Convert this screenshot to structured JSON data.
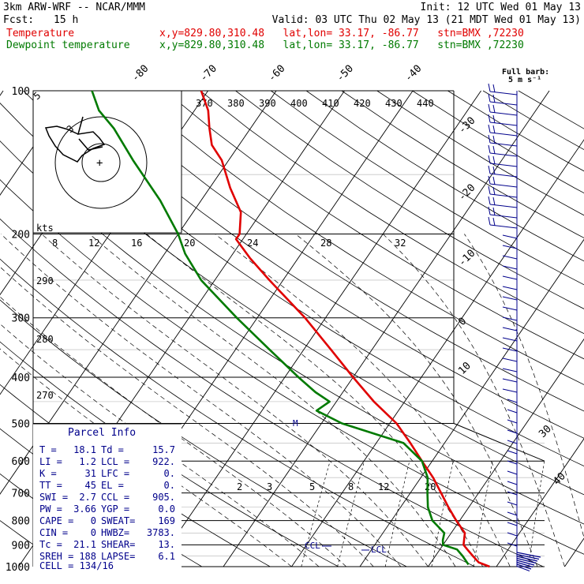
{
  "header": {
    "model": "3km ARW-WRF -- NCAR/MMM",
    "init": "Init: 12 UTC Wed 01 May 13",
    "fcst_label": "Fcst:",
    "fcst_value": "15 h",
    "valid": "Valid: 03 UTC Thu 02 May 13 (21 MDT Wed 01 May 13)",
    "temp_label": "Temperature",
    "temp_loc": "x,y=829.80,310.48   lat,lon= 33.17, -86.77   stn=BMX ,72230",
    "dew_label": "Dewpoint temperature",
    "dew_loc": "x,y=829.80,310.48   lat,lon= 33.17, -86.77   stn=BMX ,72230"
  },
  "wind_legend": {
    "line1": "Full barb:",
    "line2": "5 m s⁻¹"
  },
  "hodograph": {
    "units": "kts",
    "labels": [
      "5",
      "3"
    ],
    "storm_marker": "+"
  },
  "parcel_info": {
    "title": "Parcel Info",
    "rows": [
      [
        "T   =",
        "18.1",
        "Td  =",
        "15.7"
      ],
      [
        "LI  =",
        "1.2",
        "LCL =",
        "922."
      ],
      [
        "K   =",
        "31",
        "LFC =",
        "0."
      ],
      [
        "TT  =",
        "45",
        "EL  =",
        "0."
      ],
      [
        "SWI =",
        "2.7",
        "CCL =",
        "905."
      ],
      [
        "PW  =",
        "3.66",
        "YGP =",
        "0.0"
      ],
      [
        "CAPE =",
        "0",
        "SWEAT=",
        "169"
      ],
      [
        "CIN  =",
        "0",
        "HWBZ=",
        "3783."
      ],
      [
        "Tc  =",
        "21.1",
        "SHEAR=",
        "13."
      ],
      [
        "SREH =",
        "188",
        "LAPSE=",
        "6.1"
      ]
    ],
    "cell": "CELL = 134/16"
  },
  "markers": {
    "ccl": "CCL",
    "lcl": "LCL",
    "m": "M"
  },
  "chart_data": {
    "type": "line",
    "subtype": "skew-t log-p sounding",
    "y_axis": {
      "label": "",
      "scale": "log",
      "ticks": [
        100,
        200,
        300,
        400,
        500,
        600,
        700,
        800,
        900,
        1000
      ],
      "range": [
        1000,
        100
      ]
    },
    "isotherm_labels": [
      "-80",
      "-70",
      "-60",
      "-50",
      "-40",
      "-30",
      "-20",
      "-10",
      "0",
      "10",
      "30",
      "40"
    ],
    "theta_labels": [
      "370",
      "380",
      "390",
      "400",
      "410",
      "420",
      "430",
      "440",
      "290",
      "280",
      "270"
    ],
    "mixing_ratio_labels_upper": [
      "8",
      "12",
      "16",
      "20",
      "24",
      "28",
      "32"
    ],
    "mixing_ratio_labels_lower": [
      "2",
      "3",
      "5",
      "8",
      "12",
      "20"
    ],
    "series": [
      {
        "name": "Temperature",
        "color": "#e00000",
        "points": [
          [
            1000,
            19
          ],
          [
            980,
            17
          ],
          [
            950,
            15.5
          ],
          [
            920,
            14
          ],
          [
            900,
            13
          ],
          [
            850,
            12
          ],
          [
            800,
            9.5
          ],
          [
            750,
            7
          ],
          [
            700,
            4.5
          ],
          [
            650,
            1.8
          ],
          [
            600,
            -1.5
          ],
          [
            550,
            -5
          ],
          [
            500,
            -9
          ],
          [
            450,
            -14.5
          ],
          [
            400,
            -20
          ],
          [
            350,
            -26
          ],
          [
            300,
            -33
          ],
          [
            250,
            -42
          ],
          [
            225,
            -47
          ],
          [
            205,
            -51
          ],
          [
            200,
            -51
          ],
          [
            180,
            -53
          ],
          [
            160,
            -57
          ],
          [
            140,
            -61
          ],
          [
            130,
            -64
          ],
          [
            120,
            -66
          ],
          [
            110,
            -68
          ],
          [
            100,
            -71
          ]
        ]
      },
      {
        "name": "Dewpoint temperature",
        "color": "#007a00",
        "points": [
          [
            990,
            15.7
          ],
          [
            950,
            14
          ],
          [
            920,
            12.5
          ],
          [
            900,
            10
          ],
          [
            880,
            9.5
          ],
          [
            850,
            9
          ],
          [
            800,
            6
          ],
          [
            750,
            4
          ],
          [
            700,
            2.5
          ],
          [
            650,
            1
          ],
          [
            600,
            -1.5
          ],
          [
            550,
            -6
          ],
          [
            500,
            -17
          ],
          [
            470,
            -22
          ],
          [
            450,
            -21
          ],
          [
            430,
            -24
          ],
          [
            400,
            -28
          ],
          [
            350,
            -35
          ],
          [
            300,
            -43
          ],
          [
            250,
            -52
          ],
          [
            220,
            -57
          ],
          [
            200,
            -60
          ],
          [
            170,
            -66
          ],
          [
            140,
            -74
          ],
          [
            120,
            -80
          ],
          [
            110,
            -84
          ],
          [
            100,
            -87
          ]
        ]
      }
    ]
  }
}
